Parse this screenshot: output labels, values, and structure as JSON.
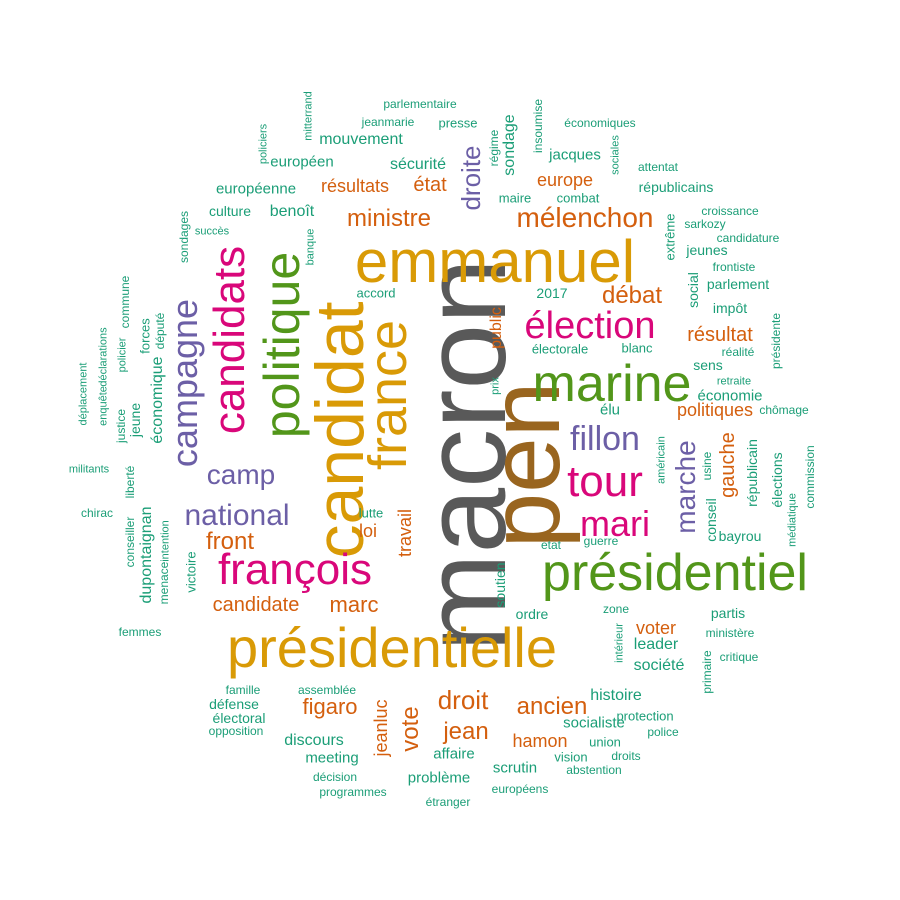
{
  "palette": {
    "gray": "#595959",
    "gold": "#d99a06",
    "brown": "#99651f",
    "green": "#52961a",
    "magenta": "#d9077a",
    "purple": "#6c5fa6",
    "orange": "#d45f0e",
    "teal": "#1b9e77"
  },
  "words": [
    {
      "text": "macron",
      "color": "gray"
    },
    {
      "text": "pen",
      "color": "brown"
    },
    {
      "text": "présidentielle",
      "color": "gold"
    },
    {
      "text": "candidat",
      "color": "gold"
    },
    {
      "text": "emmanuel",
      "color": "gold"
    },
    {
      "text": "france",
      "color": "gold"
    },
    {
      "text": "présidentiel",
      "color": "green"
    },
    {
      "text": "marine",
      "color": "green"
    },
    {
      "text": "politique",
      "color": "green"
    },
    {
      "text": "françois",
      "color": "magenta"
    },
    {
      "text": "candidats",
      "color": "magenta"
    },
    {
      "text": "tour",
      "color": "magenta"
    },
    {
      "text": "mari",
      "color": "magenta"
    },
    {
      "text": "élection",
      "color": "magenta"
    },
    {
      "text": "campagne",
      "color": "purple"
    },
    {
      "text": "fillon",
      "color": "purple"
    },
    {
      "text": "camp",
      "color": "purple"
    },
    {
      "text": "national",
      "color": "purple"
    },
    {
      "text": "marche",
      "color": "purple"
    },
    {
      "text": "droite",
      "color": "purple"
    },
    {
      "text": "mélenchon",
      "color": "orange"
    },
    {
      "text": "ministre",
      "color": "orange"
    },
    {
      "text": "débat",
      "color": "orange"
    },
    {
      "text": "front",
      "color": "orange"
    },
    {
      "text": "marc",
      "color": "orange"
    },
    {
      "text": "candidate",
      "color": "orange"
    },
    {
      "text": "droit",
      "color": "orange"
    },
    {
      "text": "ancien",
      "color": "orange"
    },
    {
      "text": "jean",
      "color": "orange"
    },
    {
      "text": "vote",
      "color": "orange"
    },
    {
      "text": "figaro",
      "color": "orange"
    },
    {
      "text": "hamon",
      "color": "orange"
    },
    {
      "text": "gauche",
      "color": "orange"
    },
    {
      "text": "résultat",
      "color": "orange"
    },
    {
      "text": "politiques",
      "color": "orange"
    },
    {
      "text": "voter",
      "color": "orange"
    },
    {
      "text": "résultats",
      "color": "orange"
    },
    {
      "text": "état",
      "color": "orange"
    },
    {
      "text": "europe",
      "color": "orange"
    },
    {
      "text": "loi",
      "color": "orange"
    },
    {
      "text": "travail",
      "color": "orange"
    },
    {
      "text": "public",
      "color": "orange"
    },
    {
      "text": "jeanluc",
      "color": "orange"
    },
    {
      "text": "benoît",
      "color": "teal"
    },
    {
      "text": "mouvement",
      "color": "teal"
    },
    {
      "text": "sécurité",
      "color": "teal"
    },
    {
      "text": "européen",
      "color": "teal"
    },
    {
      "text": "européenne",
      "color": "teal"
    },
    {
      "text": "culture",
      "color": "teal"
    },
    {
      "text": "parlementaire",
      "color": "teal"
    },
    {
      "text": "jeanmarie",
      "color": "teal"
    },
    {
      "text": "presse",
      "color": "teal"
    },
    {
      "text": "régime",
      "color": "teal"
    },
    {
      "text": "sondage",
      "color": "teal"
    },
    {
      "text": "insoumise",
      "color": "teal"
    },
    {
      "text": "jacques",
      "color": "teal"
    },
    {
      "text": "économiques",
      "color": "teal"
    },
    {
      "text": "sociales",
      "color": "teal"
    },
    {
      "text": "attentat",
      "color": "teal"
    },
    {
      "text": "républicains",
      "color": "teal"
    },
    {
      "text": "maire",
      "color": "teal"
    },
    {
      "text": "combat",
      "color": "teal"
    },
    {
      "text": "sarkozy",
      "color": "teal"
    },
    {
      "text": "croissance",
      "color": "teal"
    },
    {
      "text": "candidature",
      "color": "teal"
    },
    {
      "text": "extrême",
      "color": "teal"
    },
    {
      "text": "jeunes",
      "color": "teal"
    },
    {
      "text": "frontiste",
      "color": "teal"
    },
    {
      "text": "parlement",
      "color": "teal"
    },
    {
      "text": "social",
      "color": "teal"
    },
    {
      "text": "impôt",
      "color": "teal"
    },
    {
      "text": "présidente",
      "color": "teal"
    },
    {
      "text": "blanc",
      "color": "teal"
    },
    {
      "text": "électorale",
      "color": "teal"
    },
    {
      "text": "2017",
      "color": "teal"
    },
    {
      "text": "accord",
      "color": "teal"
    },
    {
      "text": "sens",
      "color": "teal"
    },
    {
      "text": "réalité",
      "color": "teal"
    },
    {
      "text": "retraite",
      "color": "teal"
    },
    {
      "text": "économie",
      "color": "teal"
    },
    {
      "text": "chômage",
      "color": "teal"
    },
    {
      "text": "élu",
      "color": "teal"
    },
    {
      "text": "républicain",
      "color": "teal"
    },
    {
      "text": "élections",
      "color": "teal"
    },
    {
      "text": "commission",
      "color": "teal"
    },
    {
      "text": "médiatique",
      "color": "teal"
    },
    {
      "text": "conseil",
      "color": "teal"
    },
    {
      "text": "usine",
      "color": "teal"
    },
    {
      "text": "américain",
      "color": "teal"
    },
    {
      "text": "bayrou",
      "color": "teal"
    },
    {
      "text": "etat",
      "color": "teal"
    },
    {
      "text": "guerre",
      "color": "teal"
    },
    {
      "text": "lutte",
      "color": "teal"
    },
    {
      "text": "soutien",
      "color": "teal"
    },
    {
      "text": "ordre",
      "color": "teal"
    },
    {
      "text": "zone",
      "color": "teal"
    },
    {
      "text": "partis",
      "color": "teal"
    },
    {
      "text": "ministère",
      "color": "teal"
    },
    {
      "text": "intérieur",
      "color": "teal"
    },
    {
      "text": "critique",
      "color": "teal"
    },
    {
      "text": "primaire",
      "color": "teal"
    },
    {
      "text": "leader",
      "color": "teal"
    },
    {
      "text": "société",
      "color": "teal"
    },
    {
      "text": "histoire",
      "color": "teal"
    },
    {
      "text": "socialiste",
      "color": "teal"
    },
    {
      "text": "protection",
      "color": "teal"
    },
    {
      "text": "police",
      "color": "teal"
    },
    {
      "text": "union",
      "color": "teal"
    },
    {
      "text": "affaire",
      "color": "teal"
    },
    {
      "text": "vision",
      "color": "teal"
    },
    {
      "text": "droits",
      "color": "teal"
    },
    {
      "text": "abstention",
      "color": "teal"
    },
    {
      "text": "scrutin",
      "color": "teal"
    },
    {
      "text": "problème",
      "color": "teal"
    },
    {
      "text": "européens",
      "color": "teal"
    },
    {
      "text": "étranger",
      "color": "teal"
    },
    {
      "text": "discours",
      "color": "teal"
    },
    {
      "text": "meeting",
      "color": "teal"
    },
    {
      "text": "décision",
      "color": "teal"
    },
    {
      "text": "programmes",
      "color": "teal"
    },
    {
      "text": "famille",
      "color": "teal"
    },
    {
      "text": "assemblée",
      "color": "teal"
    },
    {
      "text": "défense",
      "color": "teal"
    },
    {
      "text": "électoral",
      "color": "teal"
    },
    {
      "text": "opposition",
      "color": "teal"
    },
    {
      "text": "femmes",
      "color": "teal"
    },
    {
      "text": "dupontaignan",
      "color": "teal"
    },
    {
      "text": "victoire",
      "color": "teal"
    },
    {
      "text": "menace",
      "color": "teal"
    },
    {
      "text": "intention",
      "color": "teal"
    },
    {
      "text": "chirac",
      "color": "teal"
    },
    {
      "text": "militants",
      "color": "teal"
    },
    {
      "text": "déplacement",
      "color": "teal"
    },
    {
      "text": "enquête",
      "color": "teal"
    },
    {
      "text": "déclarations",
      "color": "teal"
    },
    {
      "text": "justice",
      "color": "teal"
    },
    {
      "text": "jeune",
      "color": "teal"
    },
    {
      "text": "policier",
      "color": "teal"
    },
    {
      "text": "commune",
      "color": "teal"
    },
    {
      "text": "conseiller",
      "color": "teal"
    },
    {
      "text": "liberté",
      "color": "teal"
    },
    {
      "text": "économique",
      "color": "teal"
    },
    {
      "text": "forces",
      "color": "teal"
    },
    {
      "text": "député",
      "color": "teal"
    },
    {
      "text": "sondages",
      "color": "teal"
    },
    {
      "text": "succès",
      "color": "teal"
    },
    {
      "text": "banque",
      "color": "teal"
    },
    {
      "text": "policiers",
      "color": "teal"
    },
    {
      "text": "mitterrand",
      "color": "teal"
    },
    {
      "text": "prix",
      "color": "teal"
    }
  ]
}
